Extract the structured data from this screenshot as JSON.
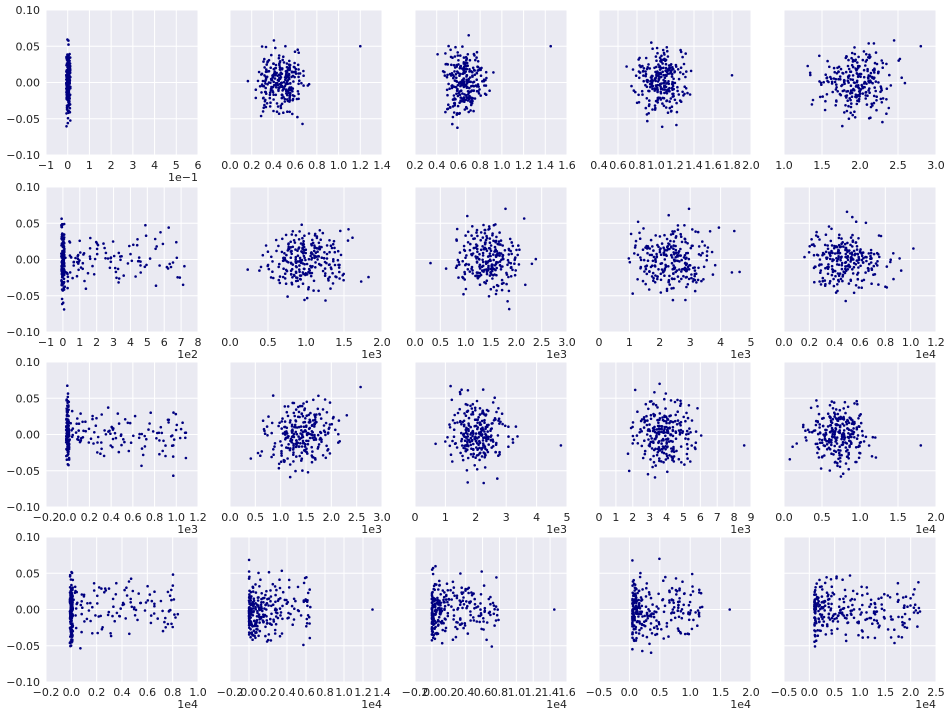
{
  "colors": {
    "panel_bg": "#EAEAF2",
    "grid": "#FFFFFF",
    "marker": "#000080",
    "text": "#222222"
  },
  "chart_data": [
    {
      "type": "scatter",
      "ylim": [
        -0.1,
        0.1
      ],
      "yticks": [
        "0.10",
        "0.05",
        "0.00",
        "−0.05",
        "−0.10"
      ],
      "xlim": [
        -1,
        6
      ],
      "xticks": [
        "−1",
        "0",
        "1",
        "2",
        "3",
        "4",
        "5",
        "6"
      ],
      "multiplier": "1e−1",
      "seed": 11,
      "pattern": "spike",
      "cluster": [
        0,
        0.12
      ],
      "n": 260
    },
    {
      "type": "scatter",
      "ylim": [
        -0.1,
        0.1
      ],
      "xlim": [
        0,
        1.4
      ],
      "xticks": [
        "0.0",
        "0.2",
        "0.4",
        "0.6",
        "0.8",
        "1.0",
        "1.2",
        "1.4"
      ],
      "multiplier": "",
      "seed": 12,
      "pattern": "blob",
      "cluster": [
        0.15,
        0.8
      ],
      "outliers": [
        1.2,
        0.05
      ],
      "n": 260
    },
    {
      "type": "scatter",
      "ylim": [
        -0.1,
        0.1
      ],
      "xlim": [
        0.2,
        1.6
      ],
      "xticks": [
        "0.2",
        "0.4",
        "0.6",
        "0.8",
        "1.0",
        "1.2",
        "1.4",
        "1.6"
      ],
      "multiplier": "",
      "seed": 13,
      "pattern": "blob",
      "cluster": [
        0.35,
        1.0
      ],
      "outliers": [
        1.45,
        0.05
      ],
      "n": 260
    },
    {
      "type": "scatter",
      "ylim": [
        -0.1,
        0.1
      ],
      "xlim": [
        0.4,
        2.0
      ],
      "xticks": [
        "0.4",
        "0.6",
        "0.8",
        "1.0",
        "1.2",
        "1.4",
        "1.6",
        "1.8",
        "2.0"
      ],
      "multiplier": "",
      "seed": 14,
      "pattern": "blob",
      "cluster": [
        0.65,
        1.5
      ],
      "outliers": [
        1.8,
        0.01
      ],
      "n": 260
    },
    {
      "type": "scatter",
      "ylim": [
        -0.1,
        0.1
      ],
      "xlim": [
        1.0,
        3.0
      ],
      "xticks": [
        "1.0",
        "1.5",
        "2.0",
        "2.5",
        "3.0"
      ],
      "multiplier": "",
      "seed": 15,
      "pattern": "blob",
      "cluster": [
        1.2,
        2.8
      ],
      "outliers": [
        2.8,
        0.05
      ],
      "n": 260
    },
    {
      "type": "scatter",
      "ylim": [
        -0.1,
        0.1
      ],
      "xlim": [
        -1,
        8
      ],
      "xticks": [
        "−1",
        "0",
        "1",
        "2",
        "3",
        "4",
        "5",
        "6",
        "7",
        "8"
      ],
      "multiplier": "1e2",
      "seed": 21,
      "pattern": "spike",
      "cluster": [
        0,
        7.2
      ],
      "n": 260
    },
    {
      "type": "scatter",
      "ylim": [
        -0.1,
        0.1
      ],
      "xlim": [
        0,
        2.0
      ],
      "xticks": [
        "0.0",
        "0.5",
        "1.0",
        "1.5",
        "2.0"
      ],
      "multiplier": "1e3",
      "seed": 22,
      "pattern": "blob",
      "cluster": [
        0.2,
        1.9
      ],
      "n": 260
    },
    {
      "type": "scatter",
      "ylim": [
        -0.1,
        0.1
      ],
      "xlim": [
        0,
        3.0
      ],
      "xticks": [
        "0.0",
        "0.5",
        "1.0",
        "1.5",
        "2.0",
        "2.5",
        "3.0"
      ],
      "multiplier": "1e3",
      "seed": 23,
      "pattern": "blob",
      "cluster": [
        0.4,
        2.6
      ],
      "n": 260
    },
    {
      "type": "scatter",
      "ylim": [
        -0.1,
        0.1
      ],
      "xlim": [
        0,
        5
      ],
      "xticks": [
        "0",
        "1",
        "2",
        "3",
        "4",
        "5"
      ],
      "multiplier": "1e3",
      "seed": 24,
      "pattern": "blob",
      "cluster": [
        0.5,
        4.6
      ],
      "n": 260
    },
    {
      "type": "scatter",
      "ylim": [
        -0.1,
        0.1
      ],
      "xlim": [
        0,
        1.2
      ],
      "xticks": [
        "0.0",
        "0.2",
        "0.4",
        "0.6",
        "0.8",
        "1.0",
        "1.2"
      ],
      "multiplier": "1e4",
      "seed": 25,
      "pattern": "blob",
      "cluster": [
        0.05,
        1.0
      ],
      "n": 260
    },
    {
      "type": "scatter",
      "ylim": [
        -0.1,
        0.1
      ],
      "xlim": [
        -0.2,
        1.2
      ],
      "xticks": [
        "−0.2",
        "0.0",
        "0.2",
        "0.4",
        "0.6",
        "0.8",
        "1.0",
        "1.2"
      ],
      "multiplier": "1e3",
      "seed": 31,
      "pattern": "spike",
      "cluster": [
        0,
        1.1
      ],
      "n": 260
    },
    {
      "type": "scatter",
      "ylim": [
        -0.1,
        0.1
      ],
      "xlim": [
        0,
        3.0
      ],
      "xticks": [
        "0.0",
        "0.5",
        "1.0",
        "1.5",
        "2.0",
        "2.5",
        "3.0"
      ],
      "multiplier": "1e3",
      "seed": 32,
      "pattern": "blob",
      "cluster": [
        0.4,
        2.6
      ],
      "n": 260
    },
    {
      "type": "scatter",
      "ylim": [
        -0.1,
        0.1
      ],
      "xlim": [
        0,
        5
      ],
      "xticks": [
        "0",
        "1",
        "2",
        "3",
        "4",
        "5"
      ],
      "multiplier": "1e3",
      "seed": 33,
      "pattern": "blob",
      "cluster": [
        0.6,
        3.6
      ],
      "outliers": [
        4.8,
        -0.015
      ],
      "n": 260
    },
    {
      "type": "scatter",
      "ylim": [
        -0.1,
        0.1
      ],
      "xlim": [
        0,
        9
      ],
      "xticks": [
        "0",
        "1",
        "2",
        "3",
        "4",
        "5",
        "6",
        "7",
        "8",
        "9"
      ],
      "multiplier": "1e3",
      "seed": 34,
      "pattern": "blob",
      "cluster": [
        1.0,
        7.0
      ],
      "outliers": [
        8.6,
        -0.015
      ],
      "n": 260
    },
    {
      "type": "scatter",
      "ylim": [
        -0.1,
        0.1
      ],
      "xlim": [
        0,
        2.0
      ],
      "xticks": [
        "0.0",
        "0.5",
        "1.0",
        "1.5",
        "2.0"
      ],
      "multiplier": "1e4",
      "seed": 35,
      "pattern": "blob",
      "cluster": [
        0.1,
        1.4
      ],
      "outliers": [
        1.8,
        -0.015
      ],
      "n": 260
    },
    {
      "type": "scatter",
      "ylim": [
        -0.1,
        0.1
      ],
      "xlim": [
        -0.2,
        1.0
      ],
      "xticks": [
        "−0.2",
        "0.0",
        "0.2",
        "0.4",
        "0.6",
        "0.8",
        "1.0"
      ],
      "multiplier": "1e4",
      "seed": 41,
      "pattern": "spike",
      "cluster": [
        0,
        0.85
      ],
      "n": 260
    },
    {
      "type": "scatter",
      "ylim": [
        -0.1,
        0.1
      ],
      "xlim": [
        -0.2,
        1.4
      ],
      "xticks": [
        "−0.2",
        "0.0",
        "0.2",
        "0.4",
        "0.6",
        "0.8",
        "1.0",
        "1.2",
        "1.4"
      ],
      "multiplier": "1e4",
      "seed": 42,
      "pattern": "skew",
      "cluster": [
        0.0,
        0.65
      ],
      "outliers": [
        1.3,
        0.0
      ],
      "n": 260
    },
    {
      "type": "scatter",
      "ylim": [
        -0.1,
        0.1
      ],
      "xlim": [
        -0.2,
        1.6
      ],
      "xticks": [
        "−0.2",
        "0.0",
        "0.2",
        "0.4",
        "0.6",
        "0.8",
        "1.0",
        "1.2",
        "1.4",
        "1.6"
      ],
      "multiplier": "1e4",
      "seed": 43,
      "pattern": "skew",
      "cluster": [
        0.0,
        0.8
      ],
      "outliers": [
        1.45,
        0.0
      ],
      "n": 260
    },
    {
      "type": "scatter",
      "ylim": [
        -0.1,
        0.1
      ],
      "xlim": [
        -0.5,
        2.0
      ],
      "xticks": [
        "−0.5",
        "0.0",
        "0.5",
        "1.0",
        "1.5",
        "2.0"
      ],
      "multiplier": "1e4",
      "seed": 44,
      "pattern": "skew",
      "cluster": [
        0.05,
        1.2
      ],
      "outliers": [
        1.65,
        0.0
      ],
      "n": 260
    },
    {
      "type": "scatter",
      "ylim": [
        -0.1,
        0.1
      ],
      "xlim": [
        -0.5,
        2.5
      ],
      "xticks": [
        "−0.5",
        "0.0",
        "0.5",
        "1.0",
        "1.5",
        "2.0",
        "2.5"
      ],
      "multiplier": "1e4",
      "seed": 45,
      "pattern": "skew",
      "cluster": [
        0.1,
        2.2
      ],
      "n": 260
    }
  ]
}
